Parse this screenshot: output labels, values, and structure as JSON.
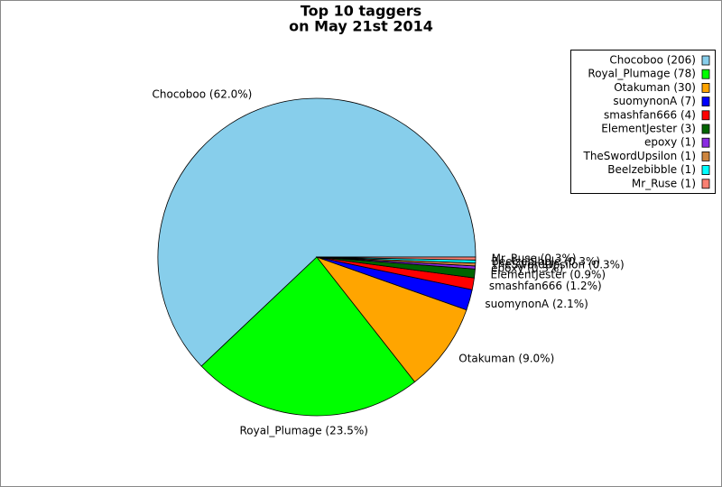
{
  "chart_data": {
    "type": "pie",
    "title": [
      "Top 10 taggers",
      "on May 21st 2014"
    ],
    "categories": [
      "Chocoboo (206)",
      "Royal_Plumage (78)",
      "Otakuman (30)",
      "suomynonA (7)",
      "smashfan666 (4)",
      "ElementJester (3)",
      "epoxy (1)",
      "TheSwordUpsilon (1)",
      "Beelzebibble (1)",
      "Mr_Ruse (1)"
    ],
    "values": [
      62.0,
      23.5,
      9.0,
      2.1,
      1.2,
      0.9,
      0.3,
      0.3,
      0.3,
      0.3
    ],
    "value_labels": [
      "Chocoboo (62.0%)",
      "Royal_Plumage (23.5%)",
      "Otakuman (9.0%)",
      "suomynonA (2.1%)",
      "smashfan666 (1.2%)",
      "ElementJester (0.9%)",
      "epoxy (0.3%)",
      "TheSwordUpsilon (0.3%)",
      "Beelzebibble (0.3%)",
      "Mr_Ruse (0.3%)"
    ],
    "colors": [
      "#87ceeb",
      "#00ff00",
      "#ffa500",
      "#0000ff",
      "#ff0000",
      "#006400",
      "#8a2be2",
      "#cd853f",
      "#00ffff",
      "#fa8072"
    ],
    "legend": "upper right"
  }
}
